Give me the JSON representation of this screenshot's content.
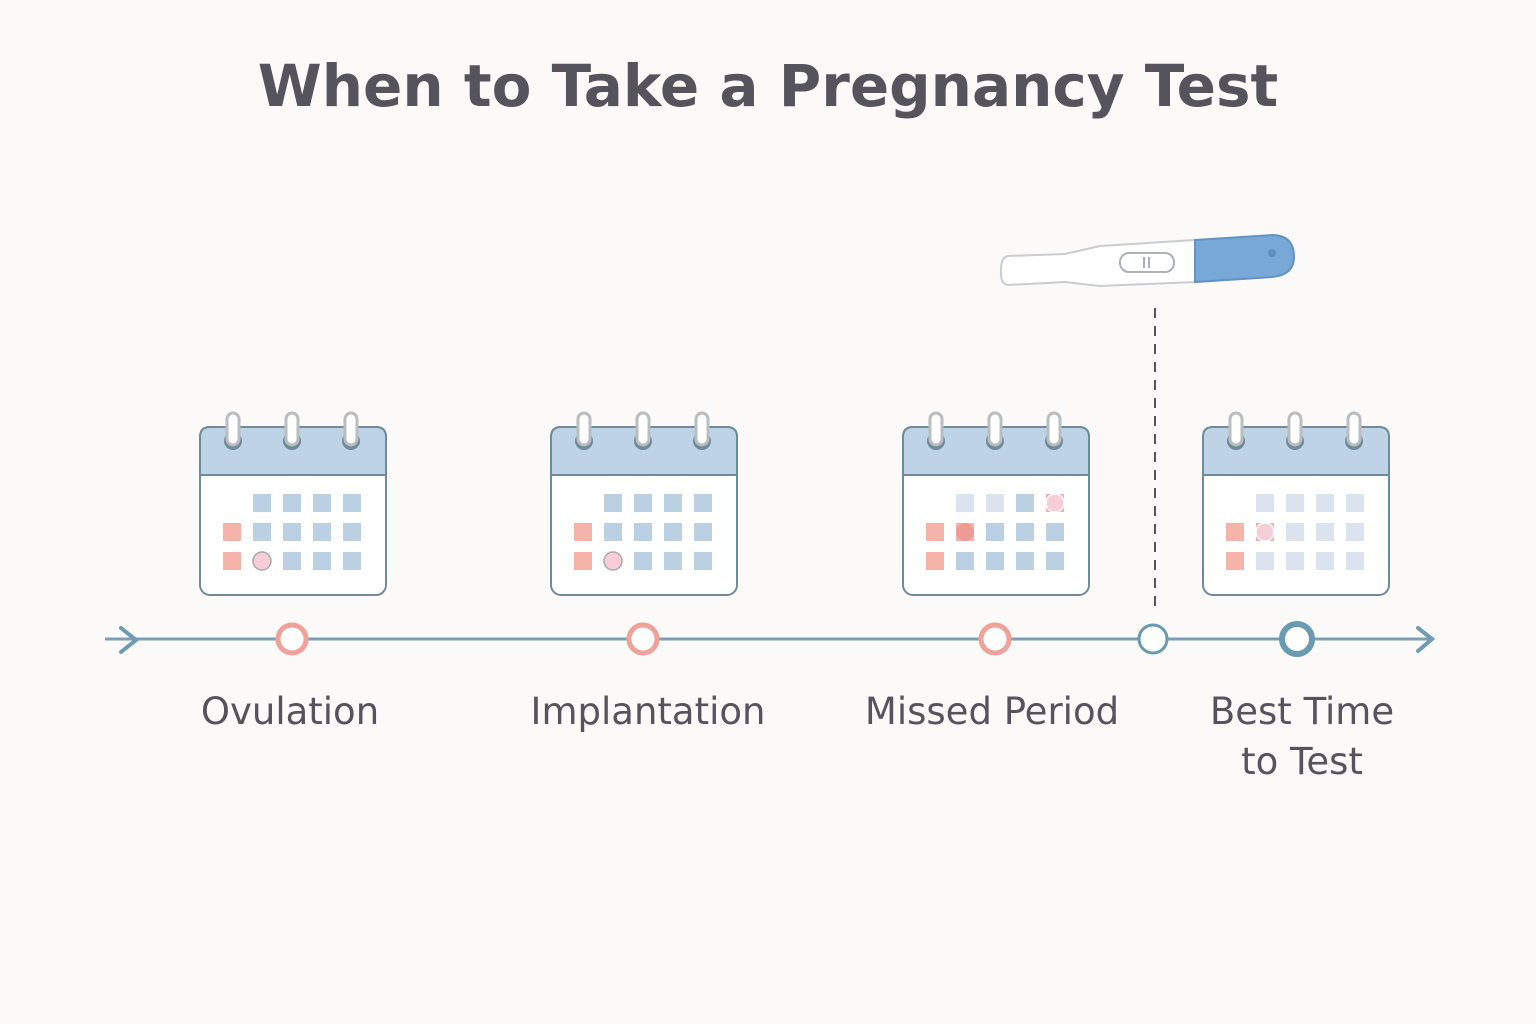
{
  "title": "When to Take a Pregnancy Test",
  "colors": {
    "line": "#6f9bb3",
    "pink": "#f0a199",
    "blue_dark": "#6a9ab2",
    "header": "#bfd3e7",
    "cell": "#bcd0e4",
    "cell_light": "#dbe4ee",
    "period": "#f6b3aa",
    "test_blue": "#77a8d8"
  },
  "stages": [
    {
      "label": "Ovulation",
      "marker": "pink",
      "calendar": {
        "cells": [
          [
            "-",
            "b",
            "b",
            "b",
            "b"
          ],
          [
            "p",
            "b",
            "b",
            "b",
            "b"
          ],
          [
            "p",
            "o",
            "b",
            "b",
            "b"
          ]
        ]
      }
    },
    {
      "label": "Implantation",
      "marker": "pink",
      "calendar": {
        "cells": [
          [
            "-",
            "b",
            "b",
            "b",
            "b"
          ],
          [
            "p",
            "b",
            "b",
            "b",
            "b"
          ],
          [
            "p",
            "o",
            "b",
            "b",
            "b"
          ]
        ]
      }
    },
    {
      "label": "Missed Period",
      "marker": "pink",
      "calendar": {
        "cells": [
          [
            "-",
            "l",
            "l",
            "b",
            "o"
          ],
          [
            "p",
            "r",
            "b",
            "b",
            "b"
          ],
          [
            "p",
            "b",
            "b",
            "b",
            "b"
          ]
        ]
      }
    },
    {
      "label": "Best Time to Test",
      "label_lines": [
        "Best Time",
        "to Test"
      ],
      "marker": "blue-bold",
      "calendar": {
        "cells": [
          [
            "-",
            "l",
            "l",
            "l",
            "l"
          ],
          [
            "p",
            "o",
            "l",
            "l",
            "l"
          ],
          [
            "p",
            "l",
            "l",
            "l",
            "l"
          ]
        ]
      }
    }
  ],
  "test_marker": "blue-small",
  "icons": [
    "calendar-icon",
    "pregnancy-test-icon",
    "arrow-right-icon"
  ]
}
